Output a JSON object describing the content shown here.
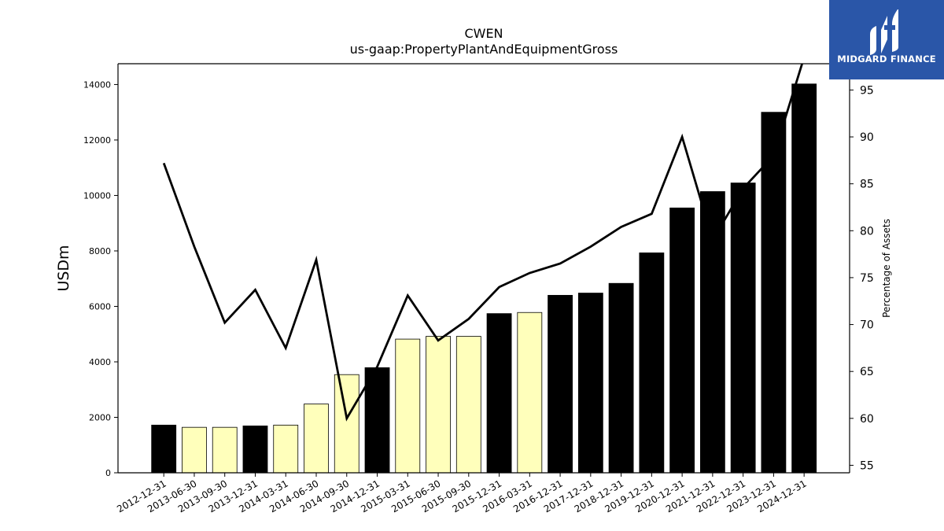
{
  "brand": {
    "name": "MIDGARD FINANCE",
    "bg_color": "#2a56a8"
  },
  "chart_data": {
    "type": "bar",
    "title": "CWEN",
    "subtitle": "us-gaap:PropertyPlantAndEquipmentGross",
    "ylabel": "USDm",
    "y2label": "Percentage of Assets",
    "ylim": [
      0,
      14750
    ],
    "y2lim": [
      54.2,
      97.8
    ],
    "yticks": [
      0,
      2000,
      4000,
      6000,
      8000,
      10000,
      12000,
      14000
    ],
    "y2ticks": [
      55,
      60,
      65,
      70,
      75,
      80,
      85,
      90,
      95
    ],
    "categories": [
      "2012-12-31",
      "2013-06-30",
      "2013-09-30",
      "2013-12-31",
      "2014-03-31",
      "2014-06-30",
      "2014-09-30",
      "2014-12-31",
      "2015-03-31",
      "2015-06-30",
      "2015-09-30",
      "2015-12-31",
      "2016-03-31",
      "2016-12-31",
      "2017-12-31",
      "2018-12-31",
      "2019-12-31",
      "2020-12-31",
      "2021-12-31",
      "2022-12-31",
      "2023-12-31",
      "2024-12-31"
    ],
    "series": [
      {
        "values": [
          1720,
          1640,
          1640,
          1690,
          1720,
          2480,
          3540,
          3790,
          4820,
          4920,
          4920,
          5740,
          5780,
          6400,
          6480,
          6830,
          7930,
          9550,
          10140,
          10450,
          13000,
          14020
        ],
        "period_type": [
          "annual",
          "quarter",
          "quarter",
          "annual",
          "quarter",
          "quarter",
          "quarter",
          "annual",
          "quarter",
          "quarter",
          "quarter",
          "annual",
          "quarter",
          "annual",
          "annual",
          "annual",
          "annual",
          "annual",
          "annual",
          "annual",
          "annual",
          "annual"
        ]
      },
      {
        "axis": "right",
        "values": [
          87.2,
          78.3,
          70.2,
          73.7,
          67.5,
          76.9,
          60.0,
          65.5,
          73.1,
          68.3,
          70.6,
          74.0,
          75.5,
          76.5,
          78.3,
          80.4,
          81.8,
          90.0,
          79.0,
          84.5,
          88.0,
          98.5
        ]
      }
    ],
    "bar_colors": {
      "annual": "#000000",
      "quarter": "#ffffbb"
    },
    "line_color": "#000000",
    "grid": false,
    "legend": "none"
  }
}
